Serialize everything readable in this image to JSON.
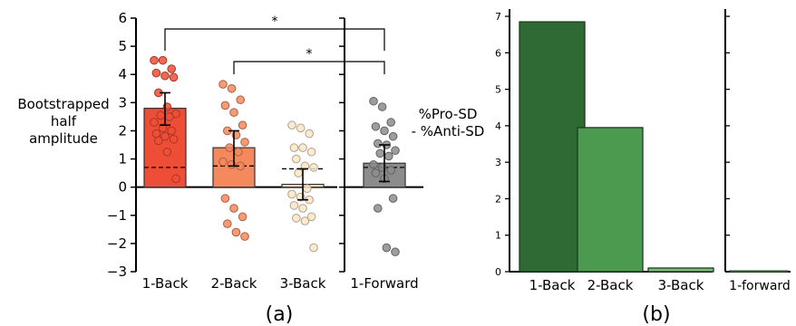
{
  "chart_data": [
    {
      "panel_label": "(a)",
      "type": "bar",
      "ylabel_left": [
        "Bootstrapped",
        "half",
        "amplitude"
      ],
      "ylabel_right": [
        "%Pro-SD",
        "- %Anti-SD"
      ],
      "ylim": [
        -3,
        6
      ],
      "yticks": [
        "−3",
        "−2",
        "−1",
        "0",
        "1",
        "2",
        "3",
        "4",
        "5",
        "6"
      ],
      "ytick_values": [
        -3,
        -2,
        -1,
        0,
        1,
        2,
        3,
        4,
        5,
        6
      ],
      "categories": [
        "1-Back",
        "2-Back",
        "3-Back"
      ],
      "values": [
        2.8,
        1.4,
        0.1
      ],
      "error_low": [
        2.2,
        0.75,
        -0.45
      ],
      "error_high": [
        3.35,
        2.0,
        0.65
      ],
      "dashed_reference": [
        0.7,
        0.75,
        0.65
      ],
      "colors": [
        "#ee4d36",
        "#f4895e",
        "#fbe6c6"
      ],
      "points": [
        [
          4.5,
          4.5,
          4.2,
          4.05,
          3.95,
          3.9,
          3.35,
          2.85,
          2.6,
          2.55,
          2.5,
          2.3,
          2.1,
          2.0,
          1.9,
          1.8,
          1.7,
          1.65,
          1.25,
          0.3
        ],
        [
          3.65,
          3.5,
          3.1,
          2.9,
          2.65,
          2.2,
          2.0,
          1.85,
          1.6,
          1.4,
          1.25,
          0.9,
          0.8,
          0.75,
          -0.4,
          -0.75,
          -1.05,
          -1.3,
          -1.6,
          -1.75
        ],
        [
          2.2,
          2.1,
          1.9,
          1.4,
          1.4,
          1.25,
          1.0,
          0.75,
          0.7,
          0.5,
          -0.05,
          -0.25,
          -0.35,
          -0.45,
          -0.65,
          -0.75,
          -1.05,
          -1.1,
          -1.2,
          -2.15
        ]
      ],
      "right_panel": {
        "categories": [
          "1-Forward"
        ],
        "values": [
          0.85
        ],
        "error_low": [
          0.2
        ],
        "error_high": [
          1.5
        ],
        "dashed_reference": [
          0.7
        ],
        "colors": [
          "#8c8c8c"
        ],
        "points": [
          [
            3.05,
            2.85,
            2.3,
            2.15,
            2.0,
            1.8,
            1.55,
            1.5,
            1.3,
            1.2,
            1.1,
            0.8,
            0.7,
            0.6,
            0.5,
            0.3,
            -0.4,
            -0.75,
            -2.15,
            -2.3
          ]
        ]
      },
      "significance": [
        {
          "from": "1-Back",
          "to": "1-Forward",
          "label": "*"
        },
        {
          "from": "2-Back",
          "to": "1-Forward",
          "label": "*"
        }
      ]
    },
    {
      "panel_label": "(b)",
      "type": "bar",
      "ylim": [
        0,
        7.2
      ],
      "yticks": [
        "0",
        "1",
        "2",
        "3",
        "4",
        "5",
        "6",
        "7"
      ],
      "ytick_values": [
        0,
        1,
        2,
        3,
        4,
        5,
        6,
        7
      ],
      "categories": [
        "1-Back",
        "2-Back",
        "3-Back"
      ],
      "values": [
        6.85,
        3.95,
        0.1
      ],
      "colors": [
        "#2f6a35",
        "#4b9a4f",
        "#7dbc7a"
      ],
      "right_panel": {
        "categories": [
          "1-forward"
        ],
        "values": [
          0.0
        ]
      }
    }
  ]
}
